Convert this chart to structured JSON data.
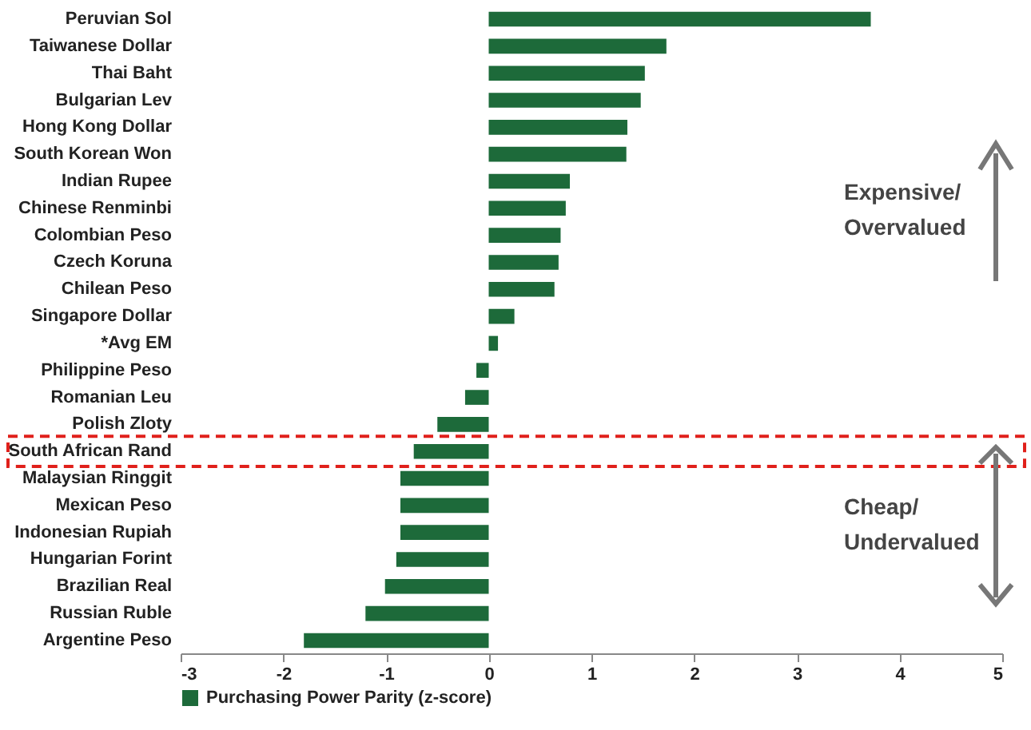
{
  "chart_data": {
    "type": "bar",
    "orientation": "horizontal",
    "categories": [
      "Peruvian Sol",
      "Taiwanese Dollar",
      "Thai Baht",
      "Bulgarian Lev",
      "Hong Kong Dollar",
      "South Korean Won",
      "Indian Rupee",
      "Chinese Renminbi",
      "Colombian Peso",
      "Czech Koruna",
      "Chilean Peso",
      "Singapore Dollar",
      "*Avg EM",
      "Philippine Peso",
      "Romanian Leu",
      "Polish Zloty",
      "South African Rand",
      "Malaysian Ringgit",
      "Mexican Peso",
      "Indonesian Rupiah",
      "Hungarian Forint",
      "Brazilian Real",
      "Russian Ruble",
      "Argentine Peso"
    ],
    "series": [
      {
        "name": "Purchasing Power Parity (z-score)",
        "color": "#1d6a3a",
        "values": [
          3.72,
          1.73,
          1.52,
          1.48,
          1.35,
          1.34,
          0.79,
          0.75,
          0.7,
          0.68,
          0.64,
          0.25,
          0.09,
          -0.12,
          -0.23,
          -0.5,
          -0.73,
          -0.86,
          -0.86,
          -0.86,
          -0.9,
          -1.01,
          -1.2,
          -1.8
        ]
      }
    ],
    "xlim": [
      -3,
      5
    ],
    "xticks": [
      -3,
      -2,
      -1,
      0,
      1,
      2,
      3,
      4,
      5
    ],
    "grid": false,
    "legend": "bottom",
    "annotations": [
      "Expensive/ Overvalued",
      "Cheap/ Undervalued"
    ]
  }
}
